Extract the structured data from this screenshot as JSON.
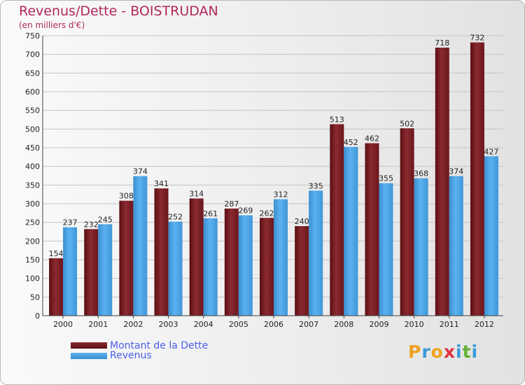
{
  "title": "Revenus/Dette - BOISTRUDAN",
  "subtitle": "(en milliers d'€)",
  "legend": {
    "dette_label": "Montant de la Dette",
    "revenus_label": "Revenus"
  },
  "logo": {
    "text": "Proxiti",
    "letters": [
      "P",
      "r",
      "o",
      "x",
      "i",
      "t",
      "i"
    ]
  },
  "colors": {
    "dette": "#7a1c22",
    "revenus": "#4aa0e0",
    "title": "#b0285c",
    "legend_text": "#4a5ee8"
  },
  "chart_data": {
    "type": "bar",
    "title": "Revenus/Dette - BOISTRUDAN",
    "ylabel": "(en milliers d'€)",
    "xlabel": "",
    "ylim": [
      0,
      750
    ],
    "yticks": [
      0,
      50,
      100,
      150,
      200,
      250,
      300,
      350,
      400,
      450,
      500,
      550,
      600,
      650,
      700,
      750
    ],
    "grid": true,
    "legend_position": "bottom-left",
    "categories": [
      "2000",
      "2001",
      "2002",
      "2003",
      "2004",
      "2005",
      "2006",
      "2007",
      "2008",
      "2009",
      "2010",
      "2011",
      "2012"
    ],
    "series": [
      {
        "name": "Montant de la Dette",
        "values": [
          154,
          232,
          308,
          341,
          314,
          287,
          262,
          240,
          513,
          462,
          502,
          718,
          732
        ]
      },
      {
        "name": "Revenus",
        "values": [
          237,
          245,
          374,
          252,
          261,
          269,
          312,
          335,
          452,
          355,
          368,
          374,
          427
        ]
      }
    ]
  }
}
